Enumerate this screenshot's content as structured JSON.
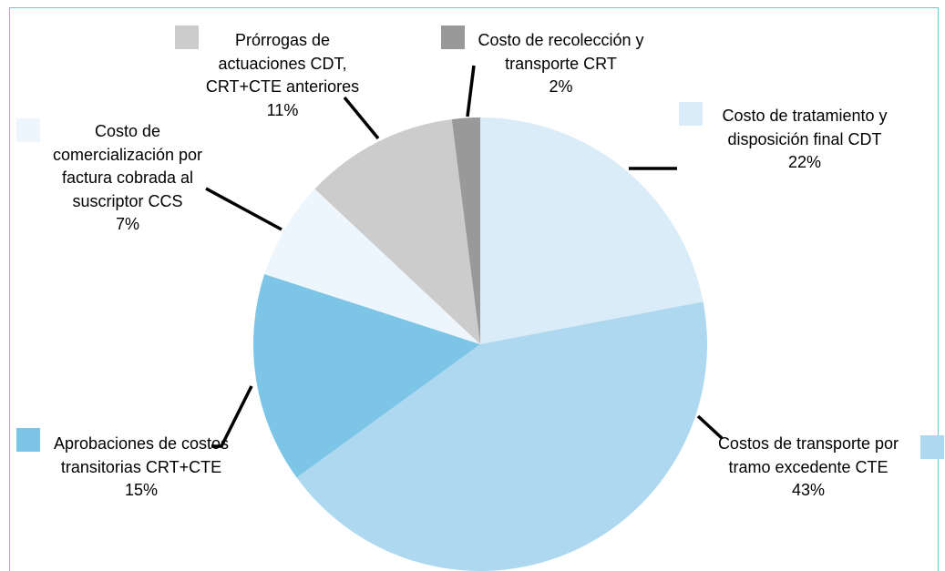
{
  "chart_data": {
    "type": "pie",
    "categories": [
      "Costo de tratamiento y disposición final CDT",
      "Costos de transporte por tramo excedente CTE",
      "Aprobaciones de costos transitorias CRT+CTE",
      "Costo de comercialización por factura cobrada al suscriptor CCS",
      "Prórrogas de actuaciones CDT, CRT+CTE anteriores",
      "Costo de recolección y transporte CRT"
    ],
    "values": [
      22,
      43,
      15,
      7,
      11,
      2
    ],
    "value_labels": [
      "22%",
      "43%",
      "15%",
      "7%",
      "11%",
      "2%"
    ],
    "colors": [
      "#d9ecf7",
      "#aed8f0",
      "#7cc5e6",
      "#eef6fd",
      "#cccccc",
      "#999999"
    ]
  }
}
